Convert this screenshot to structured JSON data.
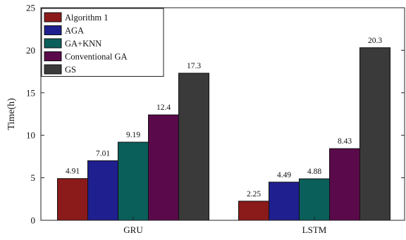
{
  "chart_data": {
    "type": "bar",
    "categories": [
      "GRU",
      "LSTM"
    ],
    "series": [
      {
        "name": "Algorithm 1",
        "values": [
          4.91,
          2.25
        ],
        "color": "#8b1a1a"
      },
      {
        "name": "AGA",
        "values": [
          7.01,
          4.49
        ],
        "color": "#1f1f8f"
      },
      {
        "name": "GA+KNN",
        "values": [
          9.19,
          4.88
        ],
        "color": "#0a5f5a"
      },
      {
        "name": "Conventional GA",
        "values": [
          12.4,
          8.43
        ],
        "color": "#5a0a4a"
      },
      {
        "name": "GS",
        "values": [
          17.3,
          20.3
        ],
        "color": "#3a3a3a"
      }
    ],
    "data_labels": [
      [
        "4.91",
        "2.25"
      ],
      [
        "7.01",
        "4.49"
      ],
      [
        "9.19",
        "4.88"
      ],
      [
        "12.4",
        "8.43"
      ],
      [
        "17.3",
        "20.3"
      ]
    ],
    "ylabel": "Time(h)",
    "xlabel": "",
    "ylim": [
      0,
      25
    ],
    "yticks": [
      0,
      5,
      10,
      15,
      20,
      25
    ],
    "grid": false,
    "legend_position": "top-left"
  }
}
